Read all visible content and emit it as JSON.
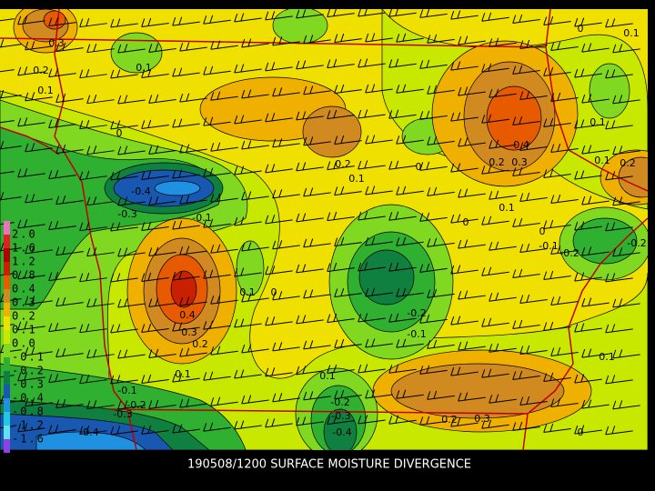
{
  "title": "190508/1200 SURFACE MOISTURE DIVERGENCE",
  "legend": {
    "levels": [
      {
        "label": "2.0",
        "color": "#f070c0"
      },
      {
        "label": "1.6",
        "color": "#e02020"
      },
      {
        "label": "1.2",
        "color": "#b00000"
      },
      {
        "label": "0.8",
        "color": "#c82000"
      },
      {
        "label": "0.4",
        "color": "#e85a00"
      },
      {
        "label": "0.3",
        "color": "#d08a20"
      },
      {
        "label": "0.2",
        "color": "#f0b000"
      },
      {
        "label": "0.1",
        "color": "#f0e000"
      },
      {
        "label": "0.0",
        "color": "#c8e800"
      },
      {
        "label": "-0.1",
        "color": "#80d820"
      },
      {
        "label": "-0.2",
        "color": "#30b030"
      },
      {
        "label": "-0.3",
        "color": "#108040"
      },
      {
        "label": "-0.4",
        "color": "#1858b0"
      },
      {
        "label": "-0.8",
        "color": "#2090e0"
      },
      {
        "label": "-1.2",
        "color": "#20c8e0"
      },
      {
        "label": "-1.6",
        "color": "#60e0f0"
      }
    ]
  },
  "contour_labels": [
    "0.3",
    "0.2",
    "0.1",
    "0.1",
    "0",
    "-0.4",
    "-0.3",
    "-0.1",
    "0.2",
    "0.1",
    "0",
    "0.4",
    "0.2",
    "0.3",
    "0.1",
    "0",
    "0",
    "0.1",
    "0.1",
    "0.1",
    "0.2",
    "-0.1",
    "-0.2",
    "-0.2",
    "0",
    "0.4",
    "0.3",
    "0.2",
    "0.1",
    "0.1",
    "0",
    "-0.2",
    "-0.1",
    "0.1",
    "0.1",
    "-0.2",
    "-0.3",
    "-0.4",
    "0.2",
    "0.3",
    "0",
    "-0.1",
    "-0.2",
    "-0.3",
    "-0.4"
  ]
}
